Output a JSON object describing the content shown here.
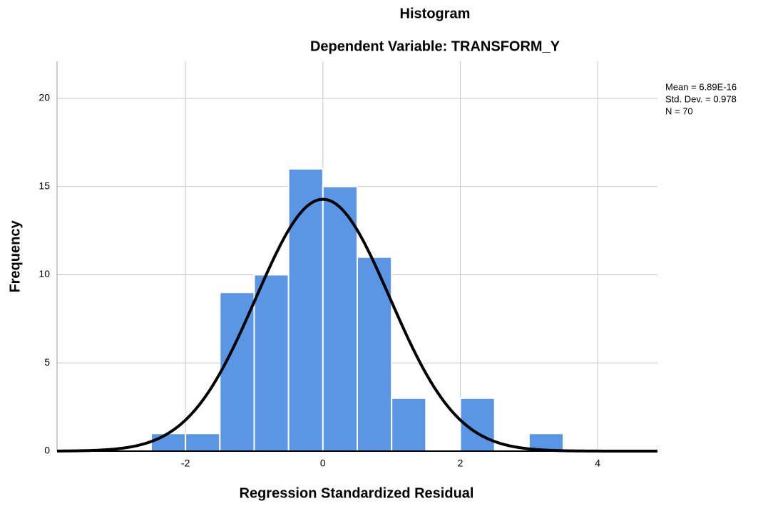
{
  "chart_data": {
    "type": "histogram",
    "title": "Histogram",
    "subtitle": "Dependent Variable: TRANSFORM_Y",
    "x_label": "Regression Standardized Residual",
    "y_label": "Frequency",
    "bins": [
      -2.5,
      -2,
      -1.5,
      -1,
      -0.5,
      0,
      0.5,
      1,
      1.5,
      2,
      2.5,
      3,
      3.5
    ],
    "values": [
      1,
      1,
      9,
      10,
      16,
      15,
      11,
      3,
      0,
      3,
      0,
      1
    ],
    "color": "#5a96e3",
    "curve_color": "#000000",
    "stats": [
      {
        "value": 6.89e-16,
        "label": "Mean = 6.89E-16"
      },
      {
        "value": 0.978,
        "label": "Std. Dev. = 0.978"
      },
      {
        "value": 70,
        "label": "N = 70"
      }
    ],
    "xlim": [
      -3.87,
      4.87
    ],
    "xticks": [
      -2,
      0,
      2,
      4
    ],
    "ylim": [
      0,
      22.1
    ],
    "yticks": [
      0,
      5,
      10,
      15,
      20
    ],
    "grid": true
  }
}
